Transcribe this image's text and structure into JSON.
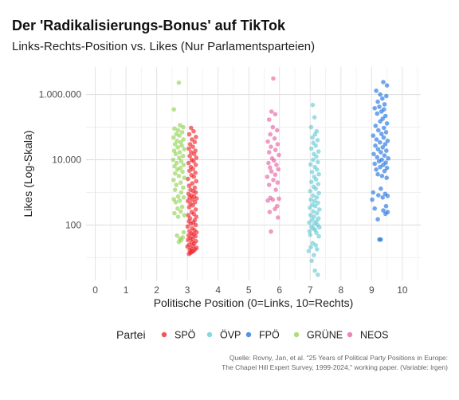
{
  "chart_data": {
    "type": "scatter",
    "title": "Der 'Radikalisierungs-Bonus' auf TikTok",
    "subtitle": "Links-Rechts-Position vs. Likes (Nur Parlamentsparteien)",
    "xlabel": "Politische Position (0=Links, 10=Rechts)",
    "ylabel": "Likes (Log-Skala)",
    "x_ticks": [
      0,
      1,
      2,
      3,
      4,
      5,
      6,
      7,
      8,
      9,
      10
    ],
    "xlim": [
      -0.3,
      10.6
    ],
    "y_scale": "log10",
    "y_ticks": [
      {
        "value": 100,
        "label": "100"
      },
      {
        "value": 10000,
        "label": "10.000"
      },
      {
        "value": 1000000,
        "label": "1.000.000"
      }
    ],
    "ylim": [
      2,
      7000000
    ],
    "grid": true,
    "legend_title": "Partei",
    "legend_position": "bottom",
    "series": [
      {
        "name": "SPÖ",
        "color": "#ee1c25",
        "points": [
          [
            3.05,
            13
          ],
          [
            3.1,
            14
          ],
          [
            3.15,
            15
          ],
          [
            3.2,
            16
          ],
          [
            3.08,
            17
          ],
          [
            3.25,
            18
          ],
          [
            3.12,
            19
          ],
          [
            3.3,
            20
          ],
          [
            3.0,
            22
          ],
          [
            3.18,
            23
          ],
          [
            3.06,
            25
          ],
          [
            3.22,
            27
          ],
          [
            3.14,
            30
          ],
          [
            3.28,
            32
          ],
          [
            3.02,
            35
          ],
          [
            3.17,
            38
          ],
          [
            3.1,
            40
          ],
          [
            3.26,
            45
          ],
          [
            3.04,
            48
          ],
          [
            3.2,
            52
          ],
          [
            3.13,
            55
          ],
          [
            3.3,
            60
          ],
          [
            3.07,
            65
          ],
          [
            3.23,
            70
          ],
          [
            3.16,
            80
          ],
          [
            3.01,
            90
          ],
          [
            3.27,
            100
          ],
          [
            3.11,
            110
          ],
          [
            3.19,
            120
          ],
          [
            3.05,
            130
          ],
          [
            3.24,
            140
          ],
          [
            3.09,
            160
          ],
          [
            3.29,
            180
          ],
          [
            3.03,
            200
          ],
          [
            3.21,
            220
          ],
          [
            3.14,
            250
          ],
          [
            3.27,
            300
          ],
          [
            3.06,
            350
          ],
          [
            3.18,
            400
          ],
          [
            3.1,
            450
          ],
          [
            3.25,
            500
          ],
          [
            3.02,
            550
          ],
          [
            3.16,
            600
          ],
          [
            3.3,
            650
          ],
          [
            3.08,
            700
          ],
          [
            3.22,
            750
          ],
          [
            3.13,
            800
          ],
          [
            3.04,
            900
          ],
          [
            3.27,
            1000
          ],
          [
            3.19,
            1100
          ],
          [
            3.1,
            1200
          ],
          [
            3.24,
            1400
          ],
          [
            3.06,
            1600
          ],
          [
            3.16,
            1900
          ],
          [
            3.29,
            2200
          ],
          [
            3.02,
            2600
          ],
          [
            3.21,
            3000
          ],
          [
            3.13,
            3400
          ],
          [
            3.26,
            4000
          ],
          [
            3.07,
            4600
          ],
          [
            3.18,
            5200
          ],
          [
            3.11,
            6000
          ],
          [
            3.27,
            7000
          ],
          [
            3.04,
            8000
          ],
          [
            3.2,
            9000
          ],
          [
            3.14,
            10000
          ],
          [
            3.29,
            11500
          ],
          [
            3.08,
            13000
          ],
          [
            3.22,
            15000
          ],
          [
            3.12,
            17000
          ],
          [
            3.26,
            19000
          ],
          [
            3.05,
            22000
          ],
          [
            3.18,
            25000
          ],
          [
            3.09,
            30000
          ],
          [
            3.24,
            35000
          ],
          [
            3.15,
            42000
          ],
          [
            3.28,
            50000
          ],
          [
            3.06,
            60000
          ],
          [
            3.2,
            75000
          ],
          [
            3.12,
            95000
          ]
        ]
      },
      {
        "name": "ÖVP",
        "color": "#62c8d4",
        "points": [
          [
            7.25,
            3
          ],
          [
            7.15,
            4
          ],
          [
            7.05,
            8
          ],
          [
            7.12,
            12
          ],
          [
            6.95,
            16
          ],
          [
            7.22,
            18
          ],
          [
            7.02,
            21
          ],
          [
            7.18,
            24
          ],
          [
            7.08,
            28
          ],
          [
            7.28,
            45
          ],
          [
            7.0,
            50
          ],
          [
            7.2,
            58
          ],
          [
            6.98,
            65
          ],
          [
            7.16,
            72
          ],
          [
            7.1,
            78
          ],
          [
            7.3,
            85
          ],
          [
            7.04,
            90
          ],
          [
            7.24,
            100
          ],
          [
            7.14,
            110
          ],
          [
            6.97,
            120
          ],
          [
            7.2,
            130
          ],
          [
            7.06,
            145
          ],
          [
            7.27,
            160
          ],
          [
            7.12,
            180
          ],
          [
            7.01,
            200
          ],
          [
            7.22,
            230
          ],
          [
            7.1,
            260
          ],
          [
            7.3,
            300
          ],
          [
            6.99,
            340
          ],
          [
            7.17,
            380
          ],
          [
            7.07,
            420
          ],
          [
            7.25,
            480
          ],
          [
            7.14,
            540
          ],
          [
            7.02,
            600
          ],
          [
            7.21,
            700
          ],
          [
            7.09,
            800
          ],
          [
            7.28,
            950
          ],
          [
            7.0,
            1100
          ],
          [
            7.18,
            1300
          ],
          [
            7.11,
            1500
          ],
          [
            7.26,
            1800
          ],
          [
            7.04,
            2100
          ],
          [
            7.19,
            2500
          ],
          [
            7.13,
            3000
          ],
          [
            7.28,
            3600
          ],
          [
            7.06,
            4200
          ],
          [
            7.22,
            5000
          ],
          [
            7.15,
            6000
          ],
          [
            7.01,
            7200
          ],
          [
            7.25,
            8500
          ],
          [
            7.09,
            10000
          ],
          [
            7.2,
            12500
          ],
          [
            7.12,
            15000
          ],
          [
            7.27,
            18000
          ],
          [
            7.04,
            22000
          ],
          [
            7.18,
            27000
          ],
          [
            7.1,
            33000
          ],
          [
            7.24,
            40000
          ],
          [
            7.07,
            48000
          ],
          [
            7.16,
            60000
          ],
          [
            7.21,
            75000
          ],
          [
            7.03,
            100000
          ],
          [
            7.14,
            200000
          ],
          [
            7.08,
            480000
          ]
        ]
      },
      {
        "name": "FPÖ",
        "color": "#1a6fe0",
        "points": [
          [
            9.25,
            36
          ],
          [
            9.3,
            36
          ],
          [
            9.2,
            150
          ],
          [
            9.45,
            220
          ],
          [
            9.52,
            250
          ],
          [
            9.38,
            280
          ],
          [
            9.1,
            320
          ],
          [
            9.47,
            380
          ],
          [
            9.02,
            600
          ],
          [
            9.36,
            700
          ],
          [
            9.52,
            780
          ],
          [
            9.22,
            820
          ],
          [
            9.44,
            900
          ],
          [
            9.05,
            1000
          ],
          [
            9.3,
            1300
          ],
          [
            9.49,
            2800
          ],
          [
            9.34,
            3200
          ],
          [
            9.2,
            3600
          ],
          [
            9.42,
            4500
          ],
          [
            9.15,
            5000
          ],
          [
            9.5,
            5600
          ],
          [
            9.28,
            6000
          ],
          [
            9.38,
            7000
          ],
          [
            9.1,
            7500
          ],
          [
            9.46,
            8200
          ],
          [
            9.24,
            9000
          ],
          [
            9.33,
            10000
          ],
          [
            9.54,
            11000
          ],
          [
            9.18,
            12000
          ],
          [
            9.42,
            13500
          ],
          [
            9.07,
            15000
          ],
          [
            9.3,
            17000
          ],
          [
            9.48,
            19000
          ],
          [
            9.21,
            21000
          ],
          [
            9.36,
            24000
          ],
          [
            9.12,
            27000
          ],
          [
            9.44,
            30000
          ],
          [
            9.27,
            34000
          ],
          [
            9.52,
            38000
          ],
          [
            9.16,
            42000
          ],
          [
            9.39,
            48000
          ],
          [
            9.05,
            55000
          ],
          [
            9.32,
            62000
          ],
          [
            9.47,
            70000
          ],
          [
            9.22,
            80000
          ],
          [
            9.4,
            95000
          ],
          [
            9.13,
            110000
          ],
          [
            9.5,
            130000
          ],
          [
            9.28,
            150000
          ],
          [
            9.36,
            180000
          ],
          [
            9.45,
            220000
          ],
          [
            9.18,
            260000
          ],
          [
            9.32,
            300000
          ],
          [
            9.4,
            350000
          ],
          [
            9.1,
            380000
          ],
          [
            9.25,
            420000
          ],
          [
            9.42,
            500000
          ],
          [
            9.2,
            600000
          ],
          [
            9.35,
            750000
          ],
          [
            9.48,
            900000
          ],
          [
            9.28,
            1000000
          ],
          [
            9.15,
            1300000
          ],
          [
            9.5,
            1900000
          ],
          [
            9.38,
            2400000
          ]
        ]
      },
      {
        "name": "GRÜNE",
        "color": "#8fd14f",
        "points": [
          [
            2.72,
            30
          ],
          [
            2.8,
            34
          ],
          [
            2.76,
            38
          ],
          [
            2.85,
            42
          ],
          [
            2.66,
            48
          ],
          [
            2.88,
            60
          ],
          [
            2.7,
            180
          ],
          [
            2.9,
            200
          ],
          [
            2.58,
            230
          ],
          [
            2.78,
            260
          ],
          [
            2.68,
            320
          ],
          [
            2.83,
            360
          ],
          [
            2.62,
            500
          ],
          [
            2.75,
            560
          ],
          [
            2.56,
            620
          ],
          [
            2.88,
            700
          ],
          [
            2.7,
            750
          ],
          [
            2.8,
            1000
          ],
          [
            2.6,
            1200
          ],
          [
            2.86,
            1400
          ],
          [
            2.64,
            1700
          ],
          [
            2.78,
            2000
          ],
          [
            2.55,
            2400
          ],
          [
            2.9,
            2800
          ],
          [
            2.72,
            3200
          ],
          [
            2.6,
            3800
          ],
          [
            2.84,
            4300
          ],
          [
            2.68,
            5000
          ],
          [
            2.77,
            5600
          ],
          [
            2.58,
            6300
          ],
          [
            2.88,
            7000
          ],
          [
            2.65,
            8000
          ],
          [
            2.8,
            9000
          ],
          [
            2.54,
            10000
          ],
          [
            2.73,
            11500
          ],
          [
            2.86,
            13000
          ],
          [
            2.62,
            15000
          ],
          [
            2.75,
            17000
          ],
          [
            2.57,
            19000
          ],
          [
            2.9,
            21000
          ],
          [
            2.69,
            24000
          ],
          [
            2.82,
            27000
          ],
          [
            2.6,
            30000
          ],
          [
            2.78,
            34000
          ],
          [
            2.66,
            38000
          ],
          [
            2.87,
            42000
          ],
          [
            2.55,
            48000
          ],
          [
            2.74,
            55000
          ],
          [
            2.64,
            62000
          ],
          [
            2.83,
            70000
          ],
          [
            2.7,
            80000
          ],
          [
            2.58,
            90000
          ],
          [
            2.86,
            100000
          ],
          [
            2.76,
            115000
          ],
          [
            2.56,
            350000
          ],
          [
            2.72,
            2300000
          ]
        ]
      },
      {
        "name": "NEOS",
        "color": "#e45fa0",
        "points": [
          [
            5.72,
            63
          ],
          [
            5.95,
            170
          ],
          [
            5.68,
            250
          ],
          [
            5.85,
            310
          ],
          [
            5.92,
            380
          ],
          [
            5.62,
            560
          ],
          [
            5.78,
            600
          ],
          [
            5.98,
            640
          ],
          [
            5.7,
            680
          ],
          [
            5.88,
            1200
          ],
          [
            5.66,
            1700
          ],
          [
            5.94,
            2000
          ],
          [
            5.8,
            2400
          ],
          [
            5.6,
            3000
          ],
          [
            5.86,
            3500
          ],
          [
            5.74,
            4400
          ],
          [
            5.96,
            5100
          ],
          [
            5.69,
            5800
          ],
          [
            5.9,
            7000
          ],
          [
            5.64,
            8000
          ],
          [
            5.82,
            9500
          ],
          [
            5.76,
            11000
          ],
          [
            5.98,
            14000
          ],
          [
            5.66,
            17000
          ],
          [
            5.87,
            20000
          ],
          [
            5.72,
            25000
          ],
          [
            5.94,
            30000
          ],
          [
            5.62,
            36000
          ],
          [
            5.84,
            45000
          ],
          [
            5.7,
            60000
          ],
          [
            5.92,
            80000
          ],
          [
            5.78,
            100000
          ],
          [
            5.66,
            170000
          ],
          [
            5.86,
            250000
          ],
          [
            5.74,
            300000
          ],
          [
            5.8,
            3100000
          ]
        ]
      }
    ]
  },
  "caption": {
    "line1": "Quelle: Rovny, Jan, et al. \"25 Years of Political Party Positions in Europe:",
    "line2": "The Chapel Hill Expert Survey, 1999-2024,\" working paper. (Variable: lrgen)"
  }
}
